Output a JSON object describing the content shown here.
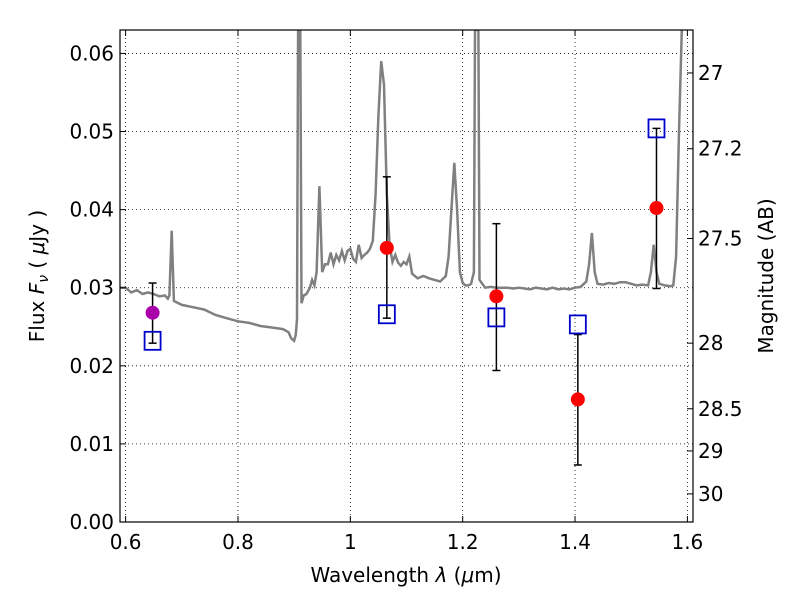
{
  "chart_data": {
    "type": "scatter",
    "xlabel": "Wavelength  λ (μm)",
    "ylabel": "Flux  Fν  ( μJy )",
    "ylabel_parts": {
      "prefix": "Flux ",
      "symbol": "F",
      "subscript": "ν",
      "open": " ( ",
      "mu": "μ",
      "unit": "Jy )"
    },
    "xlabel_parts": {
      "prefix": "Wavelength ",
      "symbol": "λ",
      "paren_open": " (",
      "mu": "μ",
      "unit": "m)"
    },
    "y2label": "Magnitude (AB)",
    "xlim": [
      0.59,
      1.61
    ],
    "ylim": [
      0.0,
      0.063
    ],
    "grid": true,
    "x_ticks": [
      0.6,
      0.8,
      1.0,
      1.2,
      1.4,
      1.6
    ],
    "x_tick_labels": [
      "0.6",
      "0.8",
      "1",
      "1.2",
      "1.4",
      "1.6"
    ],
    "y_ticks": [
      0.0,
      0.01,
      0.02,
      0.03,
      0.04,
      0.05,
      0.06
    ],
    "y_tick_labels": [
      "0.00",
      "0.01",
      "0.02",
      "0.03",
      "0.04",
      "0.05",
      "0.06"
    ],
    "y2_ticks": [
      {
        "label": "27",
        "flux": 0.0575
      },
      {
        "label": "27.2",
        "flux": 0.0478
      },
      {
        "label": "27.5",
        "flux": 0.0363
      },
      {
        "label": "28",
        "flux": 0.0229
      },
      {
        "label": "28.5",
        "flux": 0.0145
      },
      {
        "label": "29",
        "flux": 0.0091
      },
      {
        "label": "30",
        "flux": 0.0036
      }
    ],
    "observed": [
      {
        "x": 0.648,
        "y": 0.0268,
        "yerr_low": 0.0229,
        "yerr_high": 0.0306,
        "color": "#aa00aa"
      },
      {
        "x": 1.065,
        "y": 0.0351,
        "yerr_low": 0.0261,
        "yerr_high": 0.0442,
        "color": "#ff0000"
      },
      {
        "x": 1.26,
        "y": 0.0289,
        "yerr_low": 0.0194,
        "yerr_high": 0.0382,
        "color": "#ff0000"
      },
      {
        "x": 1.405,
        "y": 0.0157,
        "yerr_low": 0.0073,
        "yerr_high": 0.024,
        "color": "#ff0000"
      },
      {
        "x": 1.545,
        "y": 0.0402,
        "yerr_low": 0.0299,
        "yerr_high": 0.0504,
        "color": "#ff0000"
      }
    ],
    "model_photometry": [
      {
        "x": 0.648,
        "y": 0.0232
      },
      {
        "x": 1.065,
        "y": 0.0266
      },
      {
        "x": 1.26,
        "y": 0.0262
      },
      {
        "x": 1.405,
        "y": 0.0253
      },
      {
        "x": 1.545,
        "y": 0.0504
      }
    ],
    "model_spectrum": [
      [
        0.59,
        0.03
      ],
      [
        0.6,
        0.03
      ],
      [
        0.61,
        0.0294
      ],
      [
        0.62,
        0.0297
      ],
      [
        0.63,
        0.0292
      ],
      [
        0.64,
        0.0294
      ],
      [
        0.65,
        0.0292
      ],
      [
        0.66,
        0.0289
      ],
      [
        0.67,
        0.029
      ],
      [
        0.675,
        0.0286
      ],
      [
        0.678,
        0.029
      ],
      [
        0.682,
        0.0373
      ],
      [
        0.686,
        0.0283
      ],
      [
        0.7,
        0.0278
      ],
      [
        0.72,
        0.0275
      ],
      [
        0.74,
        0.0272
      ],
      [
        0.76,
        0.0265
      ],
      [
        0.78,
        0.0261
      ],
      [
        0.8,
        0.0257
      ],
      [
        0.82,
        0.0255
      ],
      [
        0.84,
        0.0251
      ],
      [
        0.86,
        0.0249
      ],
      [
        0.88,
        0.0247
      ],
      [
        0.89,
        0.0243
      ],
      [
        0.895,
        0.0235
      ],
      [
        0.9,
        0.0232
      ],
      [
        0.903,
        0.024
      ],
      [
        0.905,
        0.026
      ],
      [
        0.907,
        0.063
      ],
      [
        0.911,
        0.063
      ],
      [
        0.913,
        0.028
      ],
      [
        0.917,
        0.029
      ],
      [
        0.922,
        0.0292
      ],
      [
        0.928,
        0.03
      ],
      [
        0.932,
        0.031
      ],
      [
        0.936,
        0.0303
      ],
      [
        0.94,
        0.032
      ],
      [
        0.945,
        0.043
      ],
      [
        0.95,
        0.032
      ],
      [
        0.955,
        0.033
      ],
      [
        0.96,
        0.033
      ],
      [
        0.965,
        0.0345
      ],
      [
        0.97,
        0.033
      ],
      [
        0.975,
        0.0342
      ],
      [
        0.98,
        0.0335
      ],
      [
        0.985,
        0.0347
      ],
      [
        0.99,
        0.0335
      ],
      [
        0.995,
        0.0347
      ],
      [
        1.0,
        0.035
      ],
      [
        1.005,
        0.0337
      ],
      [
        1.01,
        0.0333
      ],
      [
        1.015,
        0.0355
      ],
      [
        1.02,
        0.0338
      ],
      [
        1.025,
        0.0342
      ],
      [
        1.03,
        0.0345
      ],
      [
        1.035,
        0.035
      ],
      [
        1.04,
        0.036
      ],
      [
        1.045,
        0.042
      ],
      [
        1.05,
        0.052
      ],
      [
        1.055,
        0.059
      ],
      [
        1.06,
        0.056
      ],
      [
        1.065,
        0.042
      ],
      [
        1.07,
        0.0355
      ],
      [
        1.075,
        0.0333
      ],
      [
        1.08,
        0.0342
      ],
      [
        1.085,
        0.0332
      ],
      [
        1.09,
        0.0328
      ],
      [
        1.095,
        0.0333
      ],
      [
        1.1,
        0.033
      ],
      [
        1.105,
        0.034
      ],
      [
        1.11,
        0.0318
      ],
      [
        1.12,
        0.0312
      ],
      [
        1.13,
        0.0315
      ],
      [
        1.14,
        0.0312
      ],
      [
        1.15,
        0.031
      ],
      [
        1.16,
        0.0308
      ],
      [
        1.17,
        0.0315
      ],
      [
        1.175,
        0.034
      ],
      [
        1.18,
        0.04
      ],
      [
        1.185,
        0.046
      ],
      [
        1.19,
        0.04
      ],
      [
        1.195,
        0.032
      ],
      [
        1.2,
        0.0306
      ],
      [
        1.205,
        0.0303
      ],
      [
        1.21,
        0.0303
      ],
      [
        1.215,
        0.0305
      ],
      [
        1.22,
        0.032
      ],
      [
        1.222,
        0.063
      ],
      [
        1.228,
        0.063
      ],
      [
        1.23,
        0.031
      ],
      [
        1.24,
        0.03
      ],
      [
        1.25,
        0.0301
      ],
      [
        1.26,
        0.03
      ],
      [
        1.27,
        0.03
      ],
      [
        1.28,
        0.03
      ],
      [
        1.29,
        0.0299
      ],
      [
        1.3,
        0.03
      ],
      [
        1.31,
        0.0299
      ],
      [
        1.32,
        0.0298
      ],
      [
        1.33,
        0.03
      ],
      [
        1.34,
        0.0299
      ],
      [
        1.35,
        0.0298
      ],
      [
        1.36,
        0.03
      ],
      [
        1.37,
        0.0298
      ],
      [
        1.38,
        0.0299
      ],
      [
        1.39,
        0.0298
      ],
      [
        1.4,
        0.03
      ],
      [
        1.41,
        0.0301
      ],
      [
        1.42,
        0.0308
      ],
      [
        1.425,
        0.033
      ],
      [
        1.43,
        0.037
      ],
      [
        1.435,
        0.032
      ],
      [
        1.44,
        0.0305
      ],
      [
        1.45,
        0.0304
      ],
      [
        1.46,
        0.0306
      ],
      [
        1.47,
        0.0305
      ],
      [
        1.48,
        0.0307
      ],
      [
        1.49,
        0.0307
      ],
      [
        1.5,
        0.0305
      ],
      [
        1.51,
        0.0303
      ],
      [
        1.52,
        0.0304
      ],
      [
        1.53,
        0.0303
      ],
      [
        1.535,
        0.032
      ],
      [
        1.54,
        0.0355
      ],
      [
        1.545,
        0.032
      ],
      [
        1.55,
        0.0305
      ],
      [
        1.56,
        0.0303
      ],
      [
        1.57,
        0.0302
      ],
      [
        1.575,
        0.0303
      ],
      [
        1.58,
        0.034
      ],
      [
        1.585,
        0.05
      ],
      [
        1.59,
        0.063
      ]
    ],
    "colors": {
      "model_spectrum": "#808080",
      "model_photometry": "#0000cc",
      "errorbar": "#000000"
    }
  }
}
